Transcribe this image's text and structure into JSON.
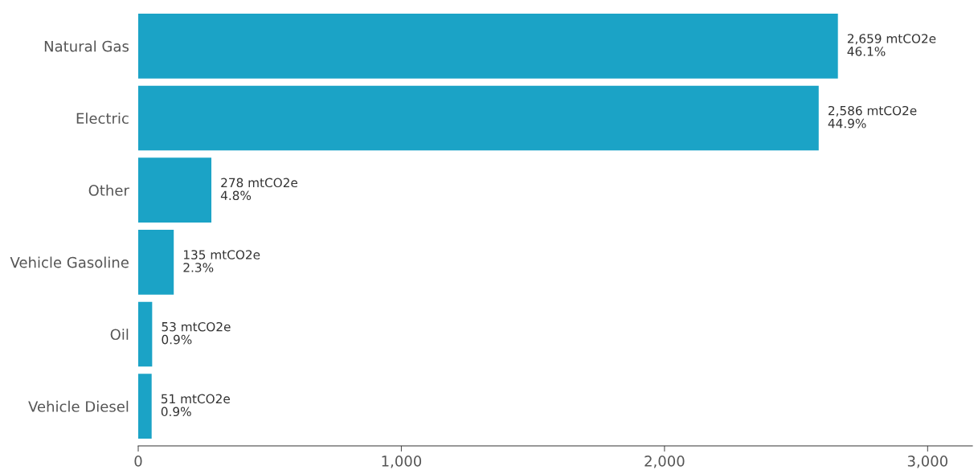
{
  "chart_data": {
    "type": "bar",
    "orientation": "horizontal",
    "categories": [
      "Natural Gas",
      "Electric",
      "Other",
      "Vehicle Gasoline",
      "Oil",
      "Vehicle Diesel"
    ],
    "values": [
      2659,
      2586,
      278,
      135,
      53,
      51
    ],
    "color": "#1ba3c6",
    "value_labels": [
      "2,659 mtCO2e\n46.1%",
      "2,586 mtCO2e\n44.9%",
      "278 mtCO2e\n4.8%",
      "135 mtCO2e\n2.3%",
      "53 mtCO2e\n0.9%",
      "51 mtCO2e\n0.9%"
    ],
    "xlim": [
      0,
      3170
    ],
    "xticks": [
      {
        "value": 0,
        "label": "0"
      },
      {
        "value": 1000,
        "label": "1,000"
      },
      {
        "value": 2000,
        "label": "2,000"
      },
      {
        "value": 3000,
        "label": "3,000"
      }
    ]
  }
}
